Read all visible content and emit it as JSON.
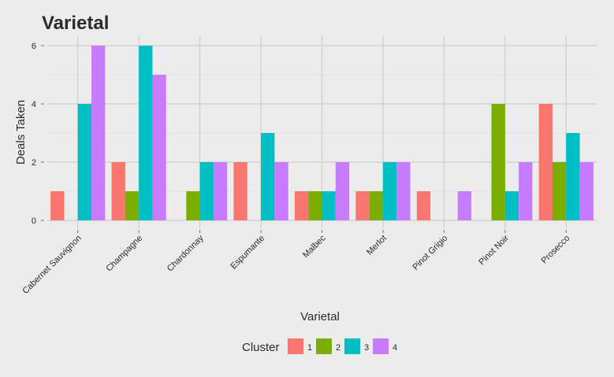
{
  "chart_data": {
    "type": "bar",
    "title": "Varietal",
    "xlabel": "Varietal",
    "ylabel": "Deals Taken",
    "ylim": [
      0,
      6.3
    ],
    "yticks": [
      0,
      2,
      4,
      6
    ],
    "grid": true,
    "legend": {
      "title": "Cluster",
      "position": "bottom"
    },
    "categories": [
      "Cabernet Sauvignon",
      "Champagne",
      "Chardonnay",
      "Espumante",
      "Malbec",
      "Merlot",
      "Pinot Grigio",
      "Pinot Noir",
      "Prosecco"
    ],
    "series": [
      {
        "name": "1",
        "color": "#f8766d",
        "values": [
          1,
          2,
          0,
          2,
          1,
          1,
          1,
          0,
          4
        ]
      },
      {
        "name": "2",
        "color": "#7cae00",
        "values": [
          0,
          1,
          1,
          0,
          1,
          1,
          0,
          4,
          2
        ]
      },
      {
        "name": "3",
        "color": "#00bfc4",
        "values": [
          4,
          6,
          2,
          3,
          1,
          2,
          0,
          1,
          3
        ]
      },
      {
        "name": "4",
        "color": "#c77cff",
        "values": [
          6,
          5,
          2,
          2,
          2,
          2,
          1,
          2,
          2
        ]
      }
    ]
  }
}
